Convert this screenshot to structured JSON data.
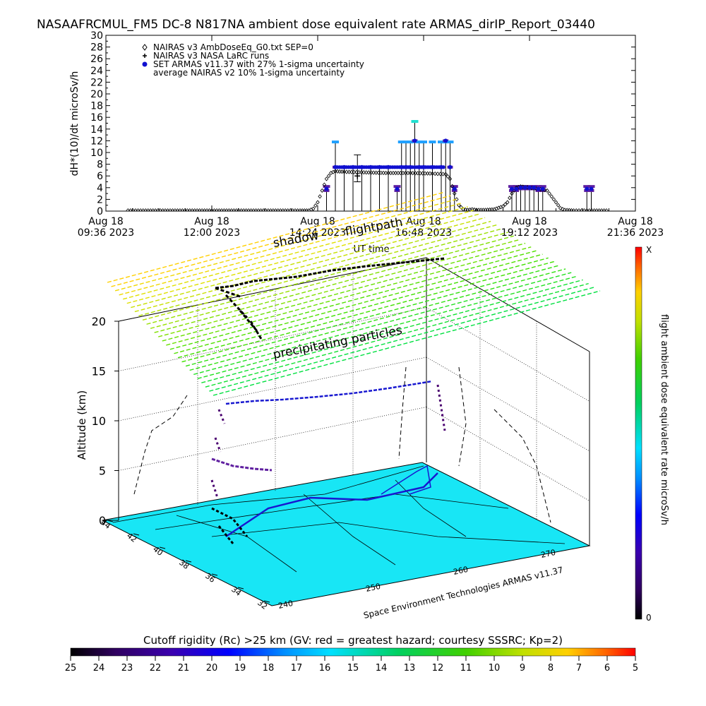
{
  "title": "NASAAFRCMUL_FM5 DC-8   N817NA ambient dose equivalent rate ARMAS_dirIP_Report_03440",
  "chart_data": [
    {
      "type": "scatter",
      "title": "",
      "xlabel": "UT time",
      "ylabel": "dH*(10)/dt microSv/h",
      "ylim": [
        0,
        30
      ],
      "yticks": [
        0,
        2,
        4,
        6,
        8,
        10,
        12,
        14,
        16,
        18,
        20,
        22,
        24,
        26,
        28,
        30
      ],
      "xlim_hours": [
        9.6,
        21.6
      ],
      "xticks": [
        {
          "hour": 9.6,
          "line1": "Aug 18",
          "line2": "09:36 2023"
        },
        {
          "hour": 12.0,
          "line1": "Aug 18",
          "line2": "12:00 2023"
        },
        {
          "hour": 14.4,
          "line1": "Aug 18",
          "line2": "14:24 2023"
        },
        {
          "hour": 16.8,
          "line1": "Aug 18",
          "line2": "16:48 2023"
        },
        {
          "hour": 19.2,
          "line1": "Aug 18",
          "line2": "19:12 2023"
        },
        {
          "hour": 21.6,
          "line1": "Aug 18",
          "line2": "21:36 2023"
        }
      ],
      "legend": [
        {
          "marker": "diamond",
          "label": "NAIRAS v3 AmbDoseEq_G0.txt SEP=0"
        },
        {
          "marker": "plus",
          "label": "NAIRAS v3 NASA LaRC runs"
        },
        {
          "marker": "dot",
          "label": "SET ARMAS v11.37 with 27% 1-sigma uncertainty"
        },
        {
          "marker": "none",
          "label": "average NAIRAS v2 10% 1-sigma uncertainty"
        }
      ],
      "legend_position": "top-left",
      "series": [
        {
          "name": "NAIRAS v3 AmbDoseEq_G0.txt SEP=0",
          "x": [
            10.1,
            10.5,
            11.0,
            11.5,
            12.0,
            12.5,
            13.0,
            13.5,
            14.0,
            14.2,
            14.3,
            14.4,
            14.5,
            14.6,
            14.7,
            14.8,
            15.0,
            15.5,
            16.0,
            16.5,
            17.0,
            17.3,
            17.4,
            17.5,
            17.6,
            17.7,
            17.8,
            17.9,
            18.0,
            18.2,
            18.4,
            18.6,
            18.7,
            18.8,
            18.9,
            19.0,
            19.2,
            19.4,
            19.6,
            19.8,
            19.9,
            20.0,
            20.2,
            20.5,
            21.0
          ],
          "y": [
            0.1,
            0.1,
            0.1,
            0.1,
            0.1,
            0.1,
            0.1,
            0.1,
            0.1,
            0.1,
            0.4,
            1.5,
            3.5,
            5.5,
            6.5,
            6.8,
            6.7,
            6.6,
            6.5,
            6.5,
            6.4,
            6.3,
            5.5,
            3.0,
            1.0,
            0.3,
            0.2,
            0.3,
            0.2,
            0.2,
            0.3,
            0.8,
            1.5,
            3.0,
            4.0,
            4.2,
            4.0,
            3.8,
            3.5,
            1.5,
            0.5,
            0.2,
            0.1,
            0.1,
            0.1
          ]
        },
        {
          "name": "NAIRAS v3 NASA LaRC runs",
          "x": [
            15.3
          ],
          "y": [
            6.0
          ],
          "err": [
            [
              5.0,
              9.6
            ]
          ]
        },
        {
          "name": "SET ARMAS v11.37 with 27% 1-sigma uncertainty",
          "x": [
            14.6,
            14.8,
            15.0,
            15.2,
            15.4,
            15.6,
            15.8,
            16.0,
            16.2,
            16.3,
            16.4,
            16.5,
            16.6,
            16.7,
            16.8,
            17.0,
            17.2,
            17.3,
            17.4,
            17.5,
            18.8,
            18.9,
            19.0,
            19.1,
            19.2,
            19.3,
            19.4,
            19.5,
            20.5,
            20.6
          ],
          "y": [
            3.8,
            7.5,
            7.5,
            7.5,
            7.5,
            7.5,
            7.5,
            7.5,
            3.8,
            7.5,
            7.5,
            7.5,
            12.0,
            7.5,
            7.5,
            7.5,
            7.5,
            12.0,
            7.5,
            3.8,
            3.8,
            3.8,
            4.0,
            4.0,
            4.0,
            4.0,
            3.8,
            3.8,
            3.8,
            3.8
          ],
          "err": [
            [
              3.5,
              4.2
            ],
            [
              7.5,
              11.8
            ],
            [
              7.5,
              7.5
            ],
            [
              7.5,
              7.5
            ],
            [
              7.5,
              7.5
            ],
            [
              7.5,
              7.5
            ],
            [
              7.5,
              7.5
            ],
            [
              7.5,
              7.5
            ],
            [
              3.5,
              4.2
            ],
            [
              7.5,
              11.8
            ],
            [
              7.5,
              11.8
            ],
            [
              7.5,
              11.8
            ],
            [
              12.0,
              15.3
            ],
            [
              7.5,
              11.8
            ],
            [
              7.5,
              11.8
            ],
            [
              7.5,
              11.8
            ],
            [
              7.5,
              11.8
            ],
            [
              12.0,
              11.8
            ],
            [
              7.5,
              11.8
            ],
            [
              3.5,
              4.2
            ],
            [
              3.5,
              4.2
            ],
            [
              3.5,
              4.2
            ],
            [
              3.8,
              4.2
            ],
            [
              3.8,
              4.2
            ],
            [
              3.8,
              4.2
            ],
            [
              3.8,
              4.2
            ],
            [
              3.5,
              4.2
            ],
            [
              3.5,
              4.2
            ],
            [
              3.5,
              4.2
            ],
            [
              3.5,
              4.2
            ]
          ]
        }
      ]
    },
    {
      "type": "3d-flight-track",
      "zlabel": "Altitude (km)",
      "zticks": [
        0,
        5,
        10,
        15,
        20
      ],
      "lat_ticks": [
        44,
        42,
        40,
        38,
        36,
        34,
        32
      ],
      "lon_ticks": [
        240,
        250,
        260,
        270
      ],
      "track_altitude_km": 12,
      "labels": {
        "flightpath": "flightpath",
        "shadow": "shadow",
        "precip": "precipitating particles",
        "credit": "Space Environment Technologies ARMAS v11.37"
      },
      "colorbar": {
        "label": "flight ambient dose equivalent rate microSv/h",
        "top": "X",
        "bottom": "0"
      }
    },
    {
      "type": "colorbar",
      "title": "Cutoff rigidity (Rc) >25 km (GV: red = greatest hazard; courtesy SSSRC; Kp=2)",
      "ticks": [
        25,
        24,
        23,
        22,
        21,
        20,
        19,
        18,
        17,
        16,
        15,
        14,
        13,
        12,
        11,
        10,
        9,
        8,
        7,
        6,
        5
      ]
    }
  ],
  "colors": {
    "legend_dot": "#1010d0",
    "ground": "#18e6f5",
    "grid_line": "#000000"
  }
}
